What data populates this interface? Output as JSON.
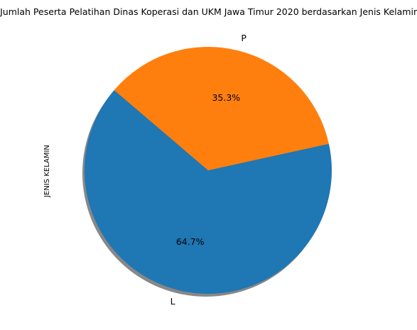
{
  "chart_data": {
    "type": "pie",
    "title": "Jumlah Peserta Pelatihan Dinas Koperasi dan UKM Jawa Timur 2020 berdasarkan Jenis Kelamin",
    "ylabel": "JENIS KELAMIN",
    "shadow": true,
    "slices": [
      {
        "label": "L",
        "percent": 64.7,
        "percent_label": "64.7%",
        "color": "#1f77b4"
      },
      {
        "label": "P",
        "percent": 35.3,
        "percent_label": "35.3%",
        "color": "#ff7f0e"
      }
    ]
  }
}
